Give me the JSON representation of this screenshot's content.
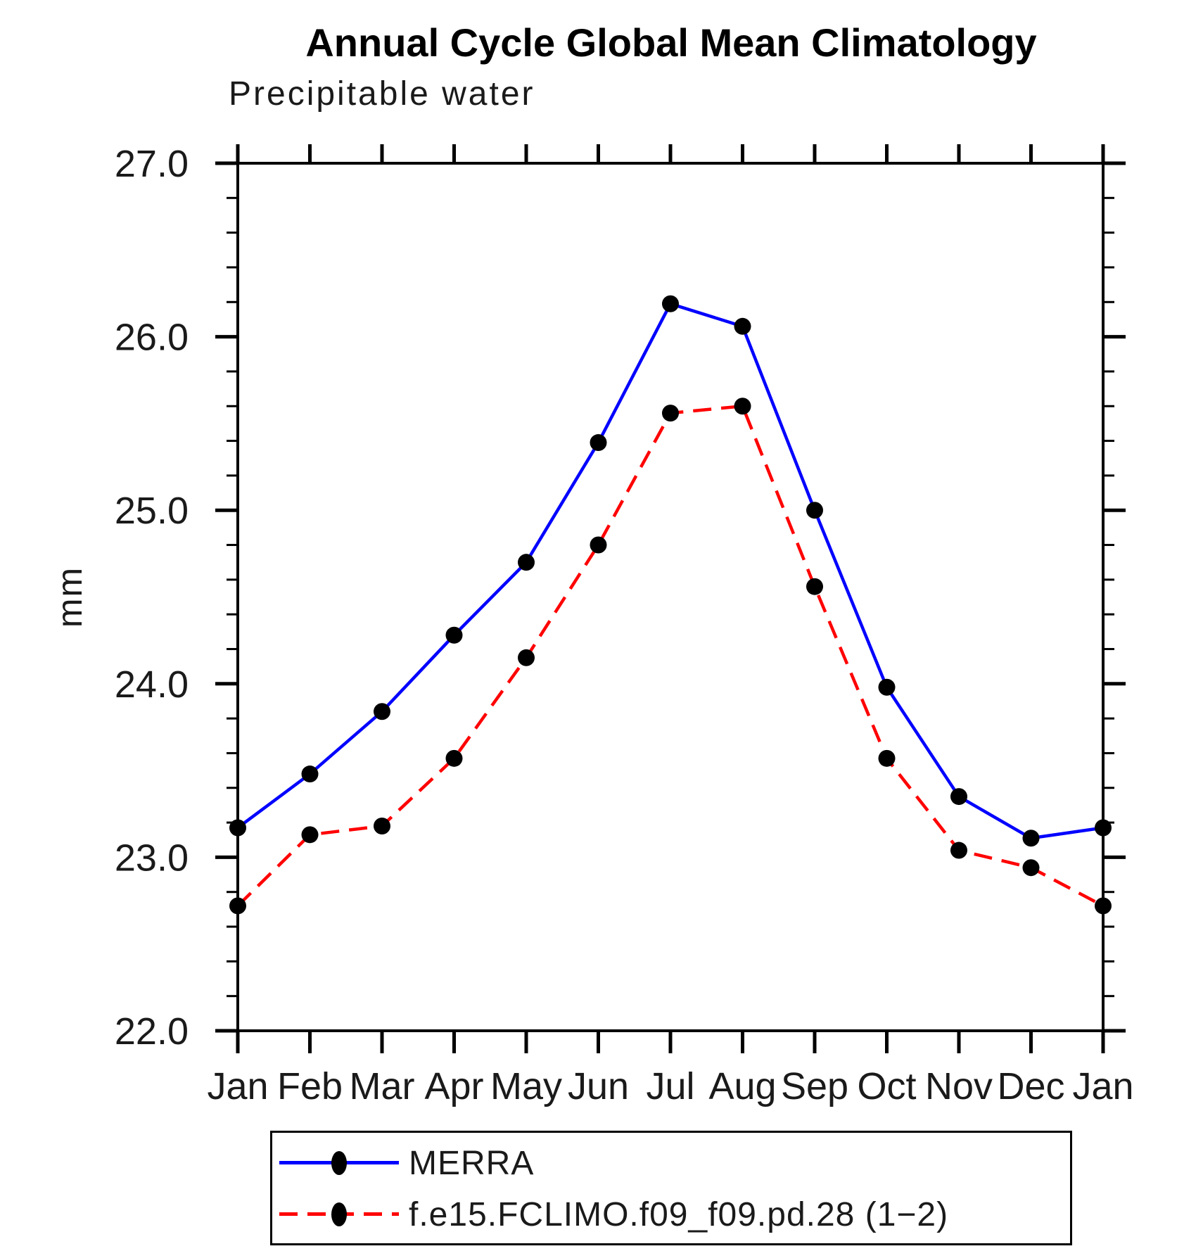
{
  "header": {
    "title": "Annual Cycle Global Mean Climatology",
    "subtitle": "Precipitable water"
  },
  "legend": {
    "entries": [
      {
        "label": "MERRA",
        "color": "#0000ff",
        "line_style": "solid",
        "marker": "filled-ellipse",
        "marker_color": "#000000"
      },
      {
        "label": "f.e15.FCLIMO.f09_f09.pd.28 (1−2)",
        "color": "#ff0000",
        "line_style": "dashed",
        "marker": "filled-ellipse",
        "marker_color": "#000000"
      }
    ]
  },
  "chart_data": {
    "type": "line",
    "title": "Annual Cycle Global Mean Climatology",
    "subtitle": "Precipitable water",
    "ylabel": "mm",
    "xlabel": "",
    "ylim": [
      22.0,
      27.0
    ],
    "y_major_step": 1.0,
    "y_minor_step": 0.2,
    "y_tick_labels": [
      "22.0",
      "23.0",
      "24.0",
      "25.0",
      "26.0",
      "27.0"
    ],
    "grid": false,
    "legend_position": "bottom",
    "categories": [
      "Jan",
      "Feb",
      "Mar",
      "Apr",
      "May",
      "Jun",
      "Jul",
      "Aug",
      "Sep",
      "Oct",
      "Nov",
      "Dec",
      "Jan"
    ],
    "series": [
      {
        "name": "MERRA",
        "color": "#0000ff",
        "line_style": "solid",
        "marker": "filled-circle",
        "marker_color": "#000000",
        "values": [
          23.17,
          23.48,
          23.84,
          24.28,
          24.7,
          25.39,
          26.19,
          26.06,
          25.0,
          23.98,
          23.35,
          23.11,
          23.17
        ]
      },
      {
        "name": "f.e15.FCLIMO.f09_f09.pd.28 (1−2)",
        "color": "#ff0000",
        "line_style": "dashed",
        "marker": "filled-circle",
        "marker_color": "#000000",
        "values": [
          22.72,
          23.13,
          23.18,
          23.57,
          24.15,
          24.8,
          25.56,
          25.6,
          24.56,
          23.57,
          23.04,
          22.94,
          22.72
        ]
      }
    ]
  }
}
